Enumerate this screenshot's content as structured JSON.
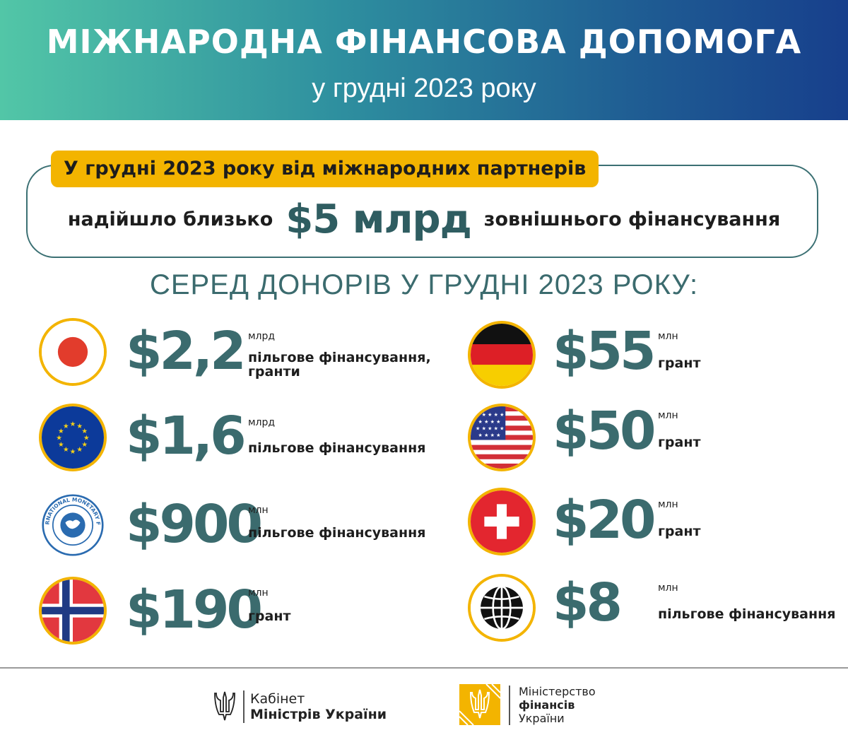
{
  "header": {
    "title": "МІЖНАРОДНА ФІНАНСОВА ДОПОМОГА",
    "subtitle": "у грудні 2023 року"
  },
  "summary": {
    "tag": "У грудні 2023 року від міжнародних партнерів",
    "prefix": "надійшло близько",
    "amount": "$5 млрд",
    "suffix": "зовнішнього фінансування"
  },
  "donors_heading": "СЕРЕД ДОНОРІВ У ГРУДНІ 2023 РОКУ:",
  "donors": {
    "japan": {
      "icon": "japan-flag-icon",
      "amount": "$2,2",
      "unit": "млрд",
      "desc_line1": "пільгове фінансування,",
      "desc_line2": "гранти"
    },
    "eu": {
      "icon": "eu-flag-icon",
      "amount": "$1,6",
      "unit": "млрд",
      "desc_line1": "пільгове фінансування"
    },
    "imf": {
      "icon": "imf-logo-icon",
      "amount": "$900",
      "unit": "млн",
      "desc_line1": "пільгове фінансування",
      "logo_text": "INTERNATIONAL MONETARY FUND"
    },
    "norway": {
      "icon": "norway-flag-icon",
      "amount": "$190",
      "unit": "млн",
      "desc_line1": "грант"
    },
    "germany": {
      "icon": "germany-flag-icon",
      "amount": "$55",
      "unit": "млн",
      "desc_line1": "грант"
    },
    "usa": {
      "icon": "usa-flag-icon",
      "amount": "$50",
      "unit": "млн",
      "desc_line1": "грант"
    },
    "switzerland": {
      "icon": "switzerland-flag-icon",
      "amount": "$20",
      "unit": "млн",
      "desc_line1": "грант"
    },
    "world_bank": {
      "icon": "world-bank-logo-icon",
      "amount": "$8",
      "unit": "млн",
      "desc_line1": "пільгове фінансування"
    }
  },
  "footer": {
    "cabinet_line1": "Кабінет",
    "cabinet_line2": "Міністрів України",
    "ministry_line1": "Міністерство",
    "ministry_line2": "фінансів",
    "ministry_line3": "України"
  },
  "colors": {
    "accent_yellow": "#f3b400",
    "teal_text": "#3b6b6e",
    "header_gradient_start": "#52c6a7",
    "header_gradient_end": "#173f8c"
  }
}
